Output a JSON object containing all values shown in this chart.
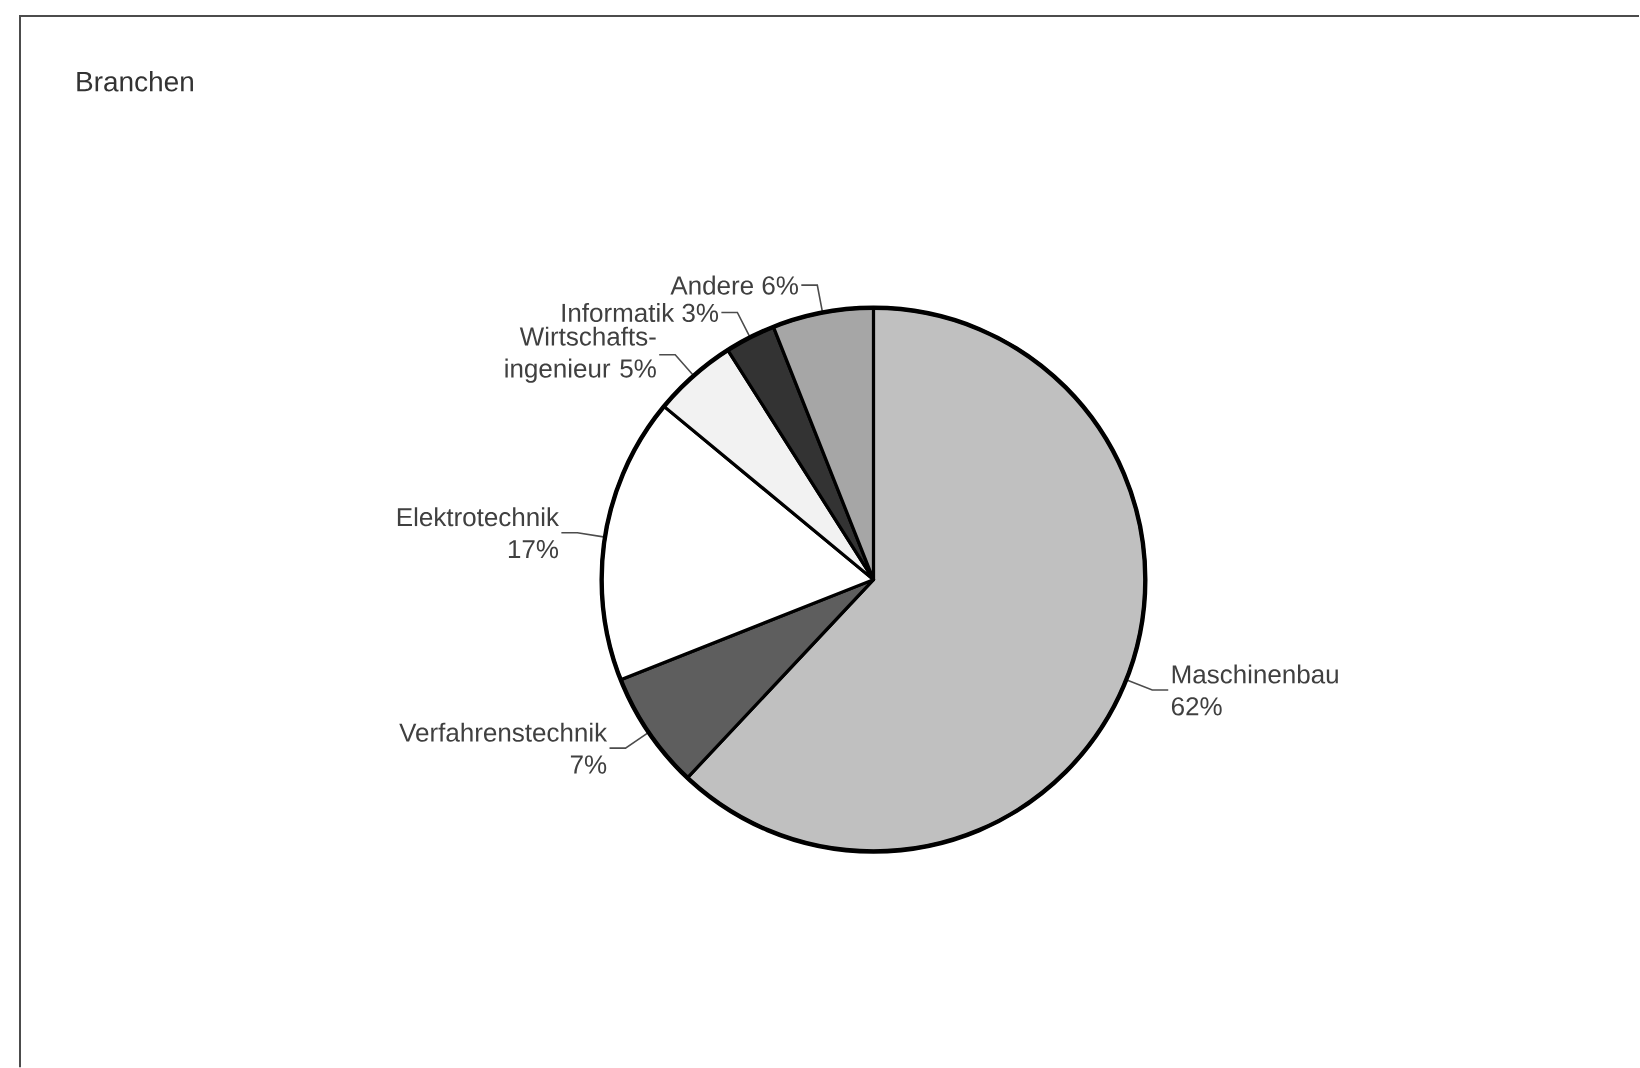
{
  "chart_data": {
    "type": "pie",
    "title": "Branchen",
    "categories": [
      "Maschinenbau",
      "Verfahrenstechnik",
      "Elektrotechnik",
      "Wirtschafts- ingenieur",
      "Informatik",
      "Andere"
    ],
    "values": [
      62,
      7,
      17,
      5,
      3,
      6
    ],
    "value_labels": [
      "62%",
      "7%",
      "17%",
      "5%",
      "3%",
      "6%"
    ],
    "colors": [
      "#c0c0c0",
      "#5e5e5e",
      "#ffffff",
      "#f2f2f2",
      "#333333",
      "#a6a6a6"
    ]
  }
}
